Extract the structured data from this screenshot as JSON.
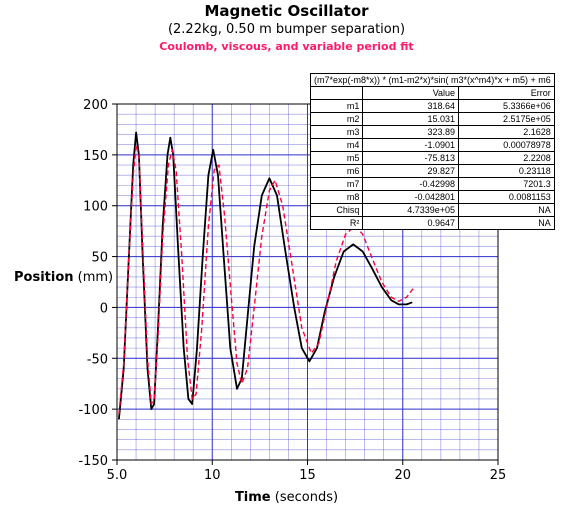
{
  "title": "Magnetic Oscillator",
  "subtitle": "(2.22kg, 0.50 m bumper separation)",
  "subtitle2": "Coulomb, viscous, and variable period fit",
  "ylabel_bold": "Position",
  "ylabel_rest": " (mm)",
  "xlabel_bold": "Time",
  "xlabel_rest": " (seconds)",
  "colors": {
    "data": "#000000",
    "fit": "#ff0033",
    "grid": "#3333cc",
    "text_accent": "#ff1a66"
  },
  "fit_table": {
    "equation": "(m7*exp(-m8*x)) * (m1-m2*x)*sin( m3*(x^m4)*x + m5) + m6",
    "headers": [
      "",
      "Value",
      "Error"
    ],
    "rows": [
      [
        "m1",
        "318.64",
        "5.3366e+06"
      ],
      [
        "m2",
        "15.031",
        "2.5175e+05"
      ],
      [
        "m3",
        "323.89",
        "2.1628"
      ],
      [
        "m4",
        "-1.0901",
        "0.00078978"
      ],
      [
        "m5",
        "-75.813",
        "2.2208"
      ],
      [
        "m6",
        "29.827",
        "0.23118"
      ],
      [
        "m7",
        "-0.42998",
        "7201.3"
      ],
      [
        "m8",
        "-0.042801",
        "0.0081153"
      ],
      [
        "Chisq",
        "4.7339e+05",
        "NA"
      ],
      [
        "R²",
        "0.9647",
        "NA"
      ]
    ]
  },
  "chart_data": {
    "type": "line",
    "xlabel": "Time (seconds)",
    "ylabel": "Position (mm)",
    "xlim": [
      5,
      25
    ],
    "ylim": [
      -150,
      200
    ],
    "xticks": [
      5.0,
      10,
      15,
      20,
      25
    ],
    "xtick_labels": [
      "5.0",
      "10",
      "15",
      "20",
      "25"
    ],
    "yticks": [
      -150,
      -100,
      -50,
      0,
      50,
      100,
      150,
      200
    ],
    "ytick_labels": [
      "-150",
      "-100",
      "-50",
      "0",
      "50",
      "100",
      "150",
      "200"
    ],
    "grid": true,
    "series": [
      {
        "style": "solid",
        "color": "#000000",
        "points": [
          [
            5.1,
            -110
          ],
          [
            5.35,
            -60
          ],
          [
            5.6,
            40
          ],
          [
            5.85,
            140
          ],
          [
            6.0,
            172
          ],
          [
            6.15,
            150
          ],
          [
            6.35,
            50
          ],
          [
            6.6,
            -60
          ],
          [
            6.8,
            -100
          ],
          [
            6.95,
            -95
          ],
          [
            7.15,
            -20
          ],
          [
            7.4,
            80
          ],
          [
            7.65,
            150
          ],
          [
            7.8,
            167
          ],
          [
            7.95,
            150
          ],
          [
            8.2,
            60
          ],
          [
            8.5,
            -40
          ],
          [
            8.75,
            -90
          ],
          [
            8.95,
            -95
          ],
          [
            9.2,
            -40
          ],
          [
            9.5,
            50
          ],
          [
            9.8,
            130
          ],
          [
            10.05,
            155
          ],
          [
            10.3,
            130
          ],
          [
            10.6,
            50
          ],
          [
            10.95,
            -40
          ],
          [
            11.3,
            -80
          ],
          [
            11.55,
            -70
          ],
          [
            11.85,
            -10
          ],
          [
            12.2,
            60
          ],
          [
            12.6,
            110
          ],
          [
            13.0,
            127
          ],
          [
            13.4,
            110
          ],
          [
            13.8,
            60
          ],
          [
            14.3,
            0
          ],
          [
            14.7,
            -40
          ],
          [
            15.1,
            -53
          ],
          [
            15.5,
            -40
          ],
          [
            15.9,
            -5
          ],
          [
            16.4,
            30
          ],
          [
            16.9,
            55
          ],
          [
            17.4,
            62
          ],
          [
            17.9,
            55
          ],
          [
            18.4,
            38
          ],
          [
            18.9,
            20
          ],
          [
            19.4,
            7
          ],
          [
            19.8,
            3
          ],
          [
            20.2,
            3
          ],
          [
            20.5,
            5
          ]
        ]
      },
      {
        "style": "dashed",
        "color": "#ff0033",
        "points": [
          [
            5.1,
            -105
          ],
          [
            5.35,
            -55
          ],
          [
            5.6,
            40
          ],
          [
            5.85,
            130
          ],
          [
            6.0,
            160
          ],
          [
            6.15,
            150
          ],
          [
            6.35,
            60
          ],
          [
            6.6,
            -50
          ],
          [
            6.8,
            -95
          ],
          [
            6.95,
            -90
          ],
          [
            7.15,
            -30
          ],
          [
            7.4,
            70
          ],
          [
            7.7,
            140
          ],
          [
            7.9,
            155
          ],
          [
            8.1,
            135
          ],
          [
            8.4,
            50
          ],
          [
            8.7,
            -50
          ],
          [
            8.95,
            -90
          ],
          [
            9.15,
            -85
          ],
          [
            9.45,
            -20
          ],
          [
            9.8,
            80
          ],
          [
            10.1,
            135
          ],
          [
            10.35,
            140
          ],
          [
            10.65,
            90
          ],
          [
            11.0,
            10
          ],
          [
            11.3,
            -55
          ],
          [
            11.55,
            -75
          ],
          [
            11.85,
            -60
          ],
          [
            12.2,
            0
          ],
          [
            12.6,
            70
          ],
          [
            13.0,
            115
          ],
          [
            13.3,
            125
          ],
          [
            13.7,
            100
          ],
          [
            14.2,
            40
          ],
          [
            14.7,
            -20
          ],
          [
            15.2,
            -45
          ],
          [
            15.6,
            -35
          ],
          [
            16.0,
            0
          ],
          [
            16.5,
            45
          ],
          [
            17.0,
            72
          ],
          [
            17.5,
            80
          ],
          [
            17.9,
            72
          ],
          [
            18.4,
            48
          ],
          [
            18.9,
            25
          ],
          [
            19.4,
            10
          ],
          [
            19.8,
            6
          ],
          [
            20.2,
            10
          ],
          [
            20.6,
            20
          ]
        ]
      }
    ]
  }
}
